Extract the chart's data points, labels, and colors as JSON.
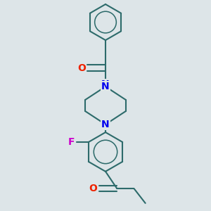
{
  "background_color": "#dde5e8",
  "bond_color": "#2d6b6b",
  "N_color": "#0000ee",
  "O_color": "#ee2200",
  "F_color": "#cc00cc",
  "bond_width": 1.5,
  "fig_width": 3.0,
  "fig_height": 3.0,
  "dpi": 100,
  "xlim": [
    -1.8,
    1.8
  ],
  "ylim": [
    -3.2,
    3.2
  ]
}
